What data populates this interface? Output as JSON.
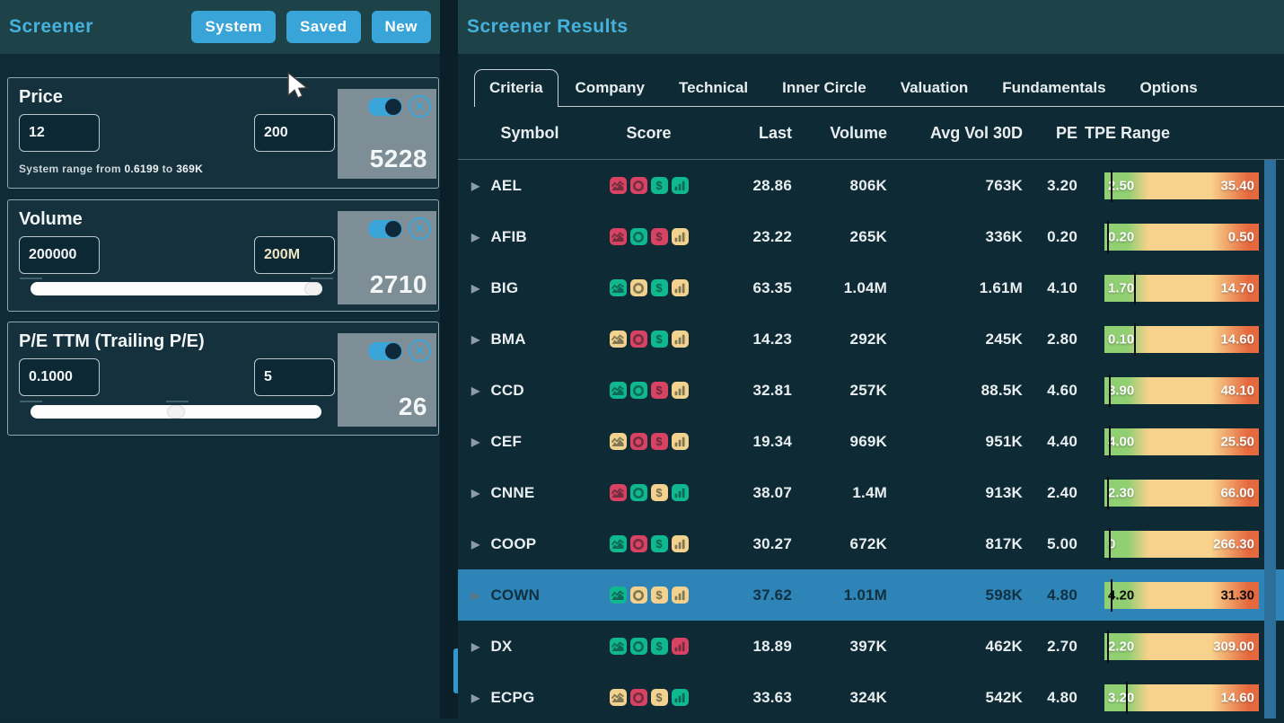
{
  "left_panel": {
    "title": "Screener",
    "buttons": [
      "System",
      "Saved",
      "New"
    ],
    "filters": [
      {
        "name": "Price",
        "min": "12",
        "max": "200",
        "count": "5228",
        "note": {
          "pre": "System range from",
          "low": "0.6199",
          "mid": "to",
          "high": "369K"
        }
      },
      {
        "name": "Volume",
        "min": "200000",
        "max": "200M",
        "count": "2710",
        "slider_thumb_pct": 94
      },
      {
        "name": "P/E TTM (Trailing P/E)",
        "min": "0.1000",
        "max": "5",
        "count": "26",
        "slider_thumb_pct": 47
      }
    ]
  },
  "right_panel": {
    "title": "Screener Results",
    "tabs": [
      {
        "label": "Criteria",
        "active": true
      },
      {
        "label": "Company",
        "active": false
      },
      {
        "label": "Technical",
        "active": false
      },
      {
        "label": "Inner Circle",
        "active": false
      },
      {
        "label": "Valuation",
        "active": false
      },
      {
        "label": "Fundamentals",
        "active": false
      },
      {
        "label": "Options",
        "active": false
      }
    ],
    "table": {
      "columns": [
        "Symbol",
        "Score",
        "Last",
        "Volume",
        "Avg Vol 30D",
        "PE",
        "TPE Range"
      ],
      "score_icon_types": [
        "trend-icon",
        "ring-icon",
        "dollar-icon",
        "bars-icon"
      ],
      "rows": [
        {
          "symbol": "AEL",
          "score": [
            "red",
            "red",
            "green",
            "green"
          ],
          "last": "28.86",
          "volume": "806K",
          "avg_vol_30d": "763K",
          "pe": "3.20",
          "tpe_low": "2.50",
          "tpe_high": "35.40",
          "marker_pct": 4,
          "selected": false
        },
        {
          "symbol": "AFIB",
          "score": [
            "red",
            "green",
            "red",
            "yellow"
          ],
          "last": "23.22",
          "volume": "265K",
          "avg_vol_30d": "336K",
          "pe": "0.20",
          "tpe_low": "0.20",
          "tpe_high": "0.50",
          "marker_pct": 1.5,
          "selected": false
        },
        {
          "symbol": "BIG",
          "score": [
            "green",
            "yellow",
            "green",
            "yellow"
          ],
          "last": "63.35",
          "volume": "1.04M",
          "avg_vol_30d": "1.61M",
          "pe": "4.10",
          "tpe_low": "1.70",
          "tpe_high": "14.70",
          "marker_pct": 19,
          "selected": false
        },
        {
          "symbol": "BMA",
          "score": [
            "yellow",
            "red",
            "green",
            "yellow"
          ],
          "last": "14.23",
          "volume": "292K",
          "avg_vol_30d": "245K",
          "pe": "2.80",
          "tpe_low": "0.10",
          "tpe_high": "14.60",
          "marker_pct": 19,
          "selected": false
        },
        {
          "symbol": "CCD",
          "score": [
            "green",
            "green",
            "red",
            "yellow"
          ],
          "last": "32.81",
          "volume": "257K",
          "avg_vol_30d": "88.5K",
          "pe": "4.60",
          "tpe_low": "3.90",
          "tpe_high": "48.10",
          "marker_pct": 3,
          "selected": false
        },
        {
          "symbol": "CEF",
          "score": [
            "yellow",
            "red",
            "red",
            "yellow"
          ],
          "last": "19.34",
          "volume": "969K",
          "avg_vol_30d": "951K",
          "pe": "4.40",
          "tpe_low": "4.00",
          "tpe_high": "25.50",
          "marker_pct": 3,
          "selected": false
        },
        {
          "symbol": "CNNE",
          "score": [
            "red",
            "green",
            "yellow",
            "green"
          ],
          "last": "38.07",
          "volume": "1.4M",
          "avg_vol_30d": "913K",
          "pe": "2.40",
          "tpe_low": "2.30",
          "tpe_high": "66.00",
          "marker_pct": 1.5,
          "selected": false
        },
        {
          "symbol": "COOP",
          "score": [
            "green",
            "red",
            "green",
            "yellow"
          ],
          "last": "30.27",
          "volume": "672K",
          "avg_vol_30d": "817K",
          "pe": "5.00",
          "tpe_low": "0",
          "tpe_high": "266.30",
          "marker_pct": 3,
          "selected": false
        },
        {
          "symbol": "COWN",
          "score": [
            "green",
            "yellow",
            "yellow",
            "yellow"
          ],
          "last": "37.62",
          "volume": "1.01M",
          "avg_vol_30d": "598K",
          "pe": "4.80",
          "tpe_low": "4.20",
          "tpe_high": "31.30",
          "marker_pct": 4,
          "selected": true
        },
        {
          "symbol": "DX",
          "score": [
            "green",
            "green",
            "green",
            "red"
          ],
          "last": "18.89",
          "volume": "397K",
          "avg_vol_30d": "462K",
          "pe": "2.70",
          "tpe_low": "2.20",
          "tpe_high": "309.00",
          "marker_pct": 1.5,
          "selected": false
        },
        {
          "symbol": "ECPG",
          "score": [
            "yellow",
            "red",
            "yellow",
            "green"
          ],
          "last": "33.63",
          "volume": "324K",
          "avg_vol_30d": "542K",
          "pe": "4.80",
          "tpe_low": "3.20",
          "tpe_high": "14.60",
          "marker_pct": 14,
          "selected": false
        }
      ]
    }
  },
  "icons": {
    "row_expand": "▶",
    "collapse_chevron": "‹",
    "dollar": "$",
    "remove_x": "✕"
  },
  "colors": {
    "accent_blue": "#38a4d8",
    "header_teal": "#1d4349",
    "panel_bg": "#0e2a35",
    "left_bg": "#0f2b36",
    "card_bg": "#14313d",
    "count_box_gray": "#7e8e96",
    "selected_row": "#2e84b6",
    "scrollbar": "#2d6f9b",
    "volume_max_text": "#ece5c4",
    "bar_green": "#90cf72",
    "bar_cream": "#f8d28c",
    "bar_orange": "#e5693f",
    "score": {
      "red": "#d84263",
      "green": "#10b890",
      "yellow": "#f2d28e"
    }
  }
}
